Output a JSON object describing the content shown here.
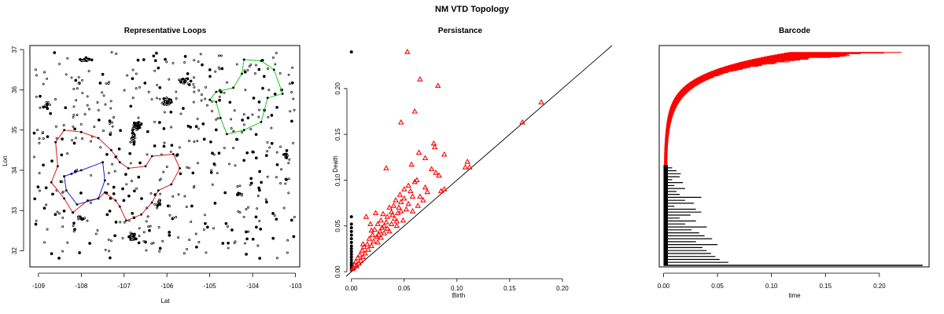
{
  "title": "NM VTD Topology",
  "chart_data": [
    {
      "type": "scatter",
      "title": "Representative Loops",
      "xlabel": "Lat",
      "ylabel": "Lon",
      "xlim": [
        -109.2,
        -102.9
      ],
      "ylim": [
        31.6,
        37.1
      ],
      "xticks": [
        -109,
        -108,
        -107,
        -106,
        -105,
        -104,
        -103
      ],
      "yticks": [
        32,
        33,
        34,
        35,
        36,
        37
      ],
      "xtick_labels": [
        "-109",
        "-108",
        "-107",
        "-106",
        "-105",
        "-104",
        "-103"
      ],
      "ytick_labels": [
        "32",
        "33",
        "34",
        "35",
        "36",
        "37"
      ],
      "grid": false,
      "series": [
        {
          "color": "#00cc00",
          "points": [
            [
              -104.2,
              36.75
            ],
            [
              -103.8,
              36.72
            ],
            [
              -103.5,
              36.5
            ],
            [
              -103.3,
              35.9
            ],
            [
              -103.65,
              35.8
            ],
            [
              -103.8,
              35.2
            ],
            [
              -104.2,
              35.0
            ],
            [
              -104.6,
              34.9
            ],
            [
              -104.75,
              35.3
            ],
            [
              -104.85,
              35.7
            ],
            [
              -105.0,
              35.75
            ],
            [
              -104.85,
              35.95
            ],
            [
              -104.45,
              36.05
            ],
            [
              -104.25,
              36.4
            ],
            [
              -104.2,
              36.75
            ]
          ]
        },
        {
          "color": "#e00000",
          "points": [
            [
              -108.6,
              34.7
            ],
            [
              -108.4,
              35.0
            ],
            [
              -108.0,
              34.95
            ],
            [
              -107.6,
              34.8
            ],
            [
              -107.3,
              34.5
            ],
            [
              -107.1,
              34.2
            ],
            [
              -106.9,
              34.05
            ],
            [
              -106.5,
              34.1
            ],
            [
              -106.35,
              34.35
            ],
            [
              -105.85,
              34.4
            ],
            [
              -105.7,
              34.05
            ],
            [
              -105.9,
              33.65
            ],
            [
              -106.2,
              33.5
            ],
            [
              -106.35,
              33.2
            ],
            [
              -106.6,
              32.9
            ],
            [
              -106.95,
              32.75
            ],
            [
              -107.1,
              33.1
            ],
            [
              -107.2,
              33.25
            ],
            [
              -107.45,
              33.45
            ],
            [
              -107.6,
              33.3
            ],
            [
              -107.85,
              33.25
            ],
            [
              -108.2,
              32.95
            ],
            [
              -108.4,
              33.3
            ],
            [
              -108.7,
              33.7
            ],
            [
              -108.55,
              34.1
            ],
            [
              -108.6,
              34.7
            ]
          ]
        },
        {
          "color": "#0000dd",
          "points": [
            [
              -108.4,
              33.85
            ],
            [
              -108.0,
              34.0
            ],
            [
              -107.5,
              34.2
            ],
            [
              -107.45,
              33.75
            ],
            [
              -107.6,
              33.3
            ],
            [
              -108.1,
              33.15
            ],
            [
              -108.35,
              33.5
            ],
            [
              -108.4,
              33.85
            ]
          ]
        }
      ]
    },
    {
      "type": "scatter",
      "title": "Persistance",
      "xlabel": "Birth",
      "ylabel": "Death",
      "xlim": [
        -0.005,
        0.247
      ],
      "ylim": [
        -0.005,
        0.247
      ],
      "xticks": [
        0.0,
        0.05,
        0.1,
        0.15,
        0.2
      ],
      "yticks": [
        0.0,
        0.05,
        0.1,
        0.15,
        0.2
      ],
      "xtick_labels": [
        "0.00",
        "0.05",
        "0.10",
        "0.15",
        "0.20"
      ],
      "ytick_labels": [
        "0.00",
        "0.05",
        "0.10",
        "0.15",
        "0.20"
      ],
      "grid": false,
      "diagonal": true,
      "series": [
        {
          "color": "#000000",
          "marker": "circle",
          "points": [
            [
              0.0,
              0.24
            ],
            [
              0.0,
              0.06
            ],
            [
              0.0,
              0.052
            ],
            [
              0.0,
              0.048
            ],
            [
              0.0,
              0.044
            ],
            [
              0.0,
              0.04
            ],
            [
              0.0,
              0.036
            ],
            [
              0.0,
              0.032
            ],
            [
              0.0,
              0.028
            ],
            [
              0.0,
              0.025
            ],
            [
              0.0,
              0.022
            ],
            [
              0.0,
              0.019
            ],
            [
              0.0,
              0.016
            ],
            [
              0.0,
              0.013
            ],
            [
              0.0,
              0.01
            ],
            [
              0.0,
              0.008
            ],
            [
              0.0,
              0.006
            ],
            [
              0.0,
              0.004
            ],
            [
              0.0,
              0.002
            ]
          ]
        },
        {
          "color": "#ff0000",
          "marker": "triangle",
          "points": [
            [
              0.053,
              0.24
            ],
            [
              0.065,
              0.21
            ],
            [
              0.082,
              0.203
            ],
            [
              0.18,
              0.185
            ],
            [
              0.06,
              0.175
            ],
            [
              0.047,
              0.163
            ],
            [
              0.162,
              0.163
            ],
            [
              0.078,
              0.14
            ],
            [
              0.079,
              0.136
            ],
            [
              0.064,
              0.13
            ],
            [
              0.07,
              0.124
            ],
            [
              0.088,
              0.128
            ],
            [
              0.11,
              0.12
            ],
            [
              0.057,
              0.117
            ],
            [
              0.108,
              0.114
            ],
            [
              0.112,
              0.114
            ],
            [
              0.076,
              0.112
            ],
            [
              0.033,
              0.113
            ],
            [
              0.08,
              0.108
            ],
            [
              0.083,
              0.105
            ],
            [
              0.062,
              0.1
            ],
            [
              0.06,
              0.098
            ],
            [
              0.054,
              0.094
            ],
            [
              0.07,
              0.092
            ],
            [
              0.088,
              0.09
            ],
            [
              0.085,
              0.088
            ],
            [
              0.05,
              0.09
            ],
            [
              0.056,
              0.088
            ],
            [
              0.072,
              0.087
            ],
            [
              0.046,
              0.084
            ],
            [
              0.065,
              0.082
            ],
            [
              0.058,
              0.082
            ],
            [
              0.05,
              0.08
            ],
            [
              0.068,
              0.078
            ],
            [
              0.042,
              0.078
            ],
            [
              0.047,
              0.076
            ],
            [
              0.054,
              0.074
            ],
            [
              0.063,
              0.072
            ],
            [
              0.04,
              0.072
            ],
            [
              0.036,
              0.07
            ],
            [
              0.045,
              0.07
            ],
            [
              0.052,
              0.068
            ],
            [
              0.058,
              0.066
            ],
            [
              0.038,
              0.065
            ],
            [
              0.044,
              0.064
            ],
            [
              0.03,
              0.063
            ],
            [
              0.034,
              0.06
            ],
            [
              0.041,
              0.058
            ],
            [
              0.049,
              0.056
            ],
            [
              0.028,
              0.056
            ],
            [
              0.033,
              0.054
            ],
            [
              0.038,
              0.052
            ],
            [
              0.025,
              0.052
            ],
            [
              0.029,
              0.048
            ],
            [
              0.034,
              0.047
            ],
            [
              0.043,
              0.05
            ],
            [
              0.022,
              0.046
            ],
            [
              0.027,
              0.044
            ],
            [
              0.031,
              0.042
            ],
            [
              0.02,
              0.04
            ],
            [
              0.024,
              0.038
            ],
            [
              0.028,
              0.037
            ],
            [
              0.017,
              0.036
            ],
            [
              0.021,
              0.033
            ],
            [
              0.025,
              0.032
            ],
            [
              0.015,
              0.03
            ],
            [
              0.019,
              0.028
            ],
            [
              0.012,
              0.027
            ],
            [
              0.016,
              0.024
            ],
            [
              0.01,
              0.023
            ],
            [
              0.013,
              0.02
            ],
            [
              0.008,
              0.018
            ],
            [
              0.011,
              0.016
            ],
            [
              0.006,
              0.015
            ],
            [
              0.009,
              0.012
            ],
            [
              0.004,
              0.011
            ],
            [
              0.007,
              0.009
            ],
            [
              0.003,
              0.007
            ],
            [
              0.005,
              0.006
            ],
            [
              0.002,
              0.004
            ],
            [
              0.001,
              0.003
            ],
            [
              0.014,
              0.06
            ],
            [
              0.018,
              0.052
            ],
            [
              0.023,
              0.064
            ],
            [
              0.031,
              0.05
            ],
            [
              0.039,
              0.062
            ],
            [
              0.047,
              0.066
            ],
            [
              0.036,
              0.044
            ],
            [
              0.026,
              0.04
            ],
            [
              0.043,
              0.055
            ],
            [
              0.011,
              0.03
            ],
            [
              0.019,
              0.045
            ]
          ]
        }
      ]
    },
    {
      "type": "barcode",
      "title": "Barcode",
      "xlabel": "time",
      "xlim": [
        -0.004,
        0.246
      ],
      "xticks": [
        0.0,
        0.05,
        0.1,
        0.15,
        0.2
      ],
      "xtick_labels": [
        "0.00",
        "0.05",
        "0.10",
        "0.15",
        "0.20"
      ],
      "grid": false,
      "dim0_color": "#000000",
      "dim1_color": "#ff0000",
      "dim0_infinite_bar": 0.24,
      "dim0_bars": [
        0.06,
        0.052,
        0.048,
        0.044,
        0.04,
        0.036,
        0.05,
        0.03,
        0.045,
        0.038,
        0.033,
        0.026,
        0.04,
        0.02,
        0.03,
        0.015,
        0.025,
        0.035,
        0.03,
        0.01,
        0.028,
        0.02,
        0.035,
        0.015,
        0.012,
        0.02,
        0.01,
        0.018,
        0.008,
        0.015,
        0.016,
        0.012,
        0.008
      ],
      "dim1_bar_count": 180
    }
  ]
}
